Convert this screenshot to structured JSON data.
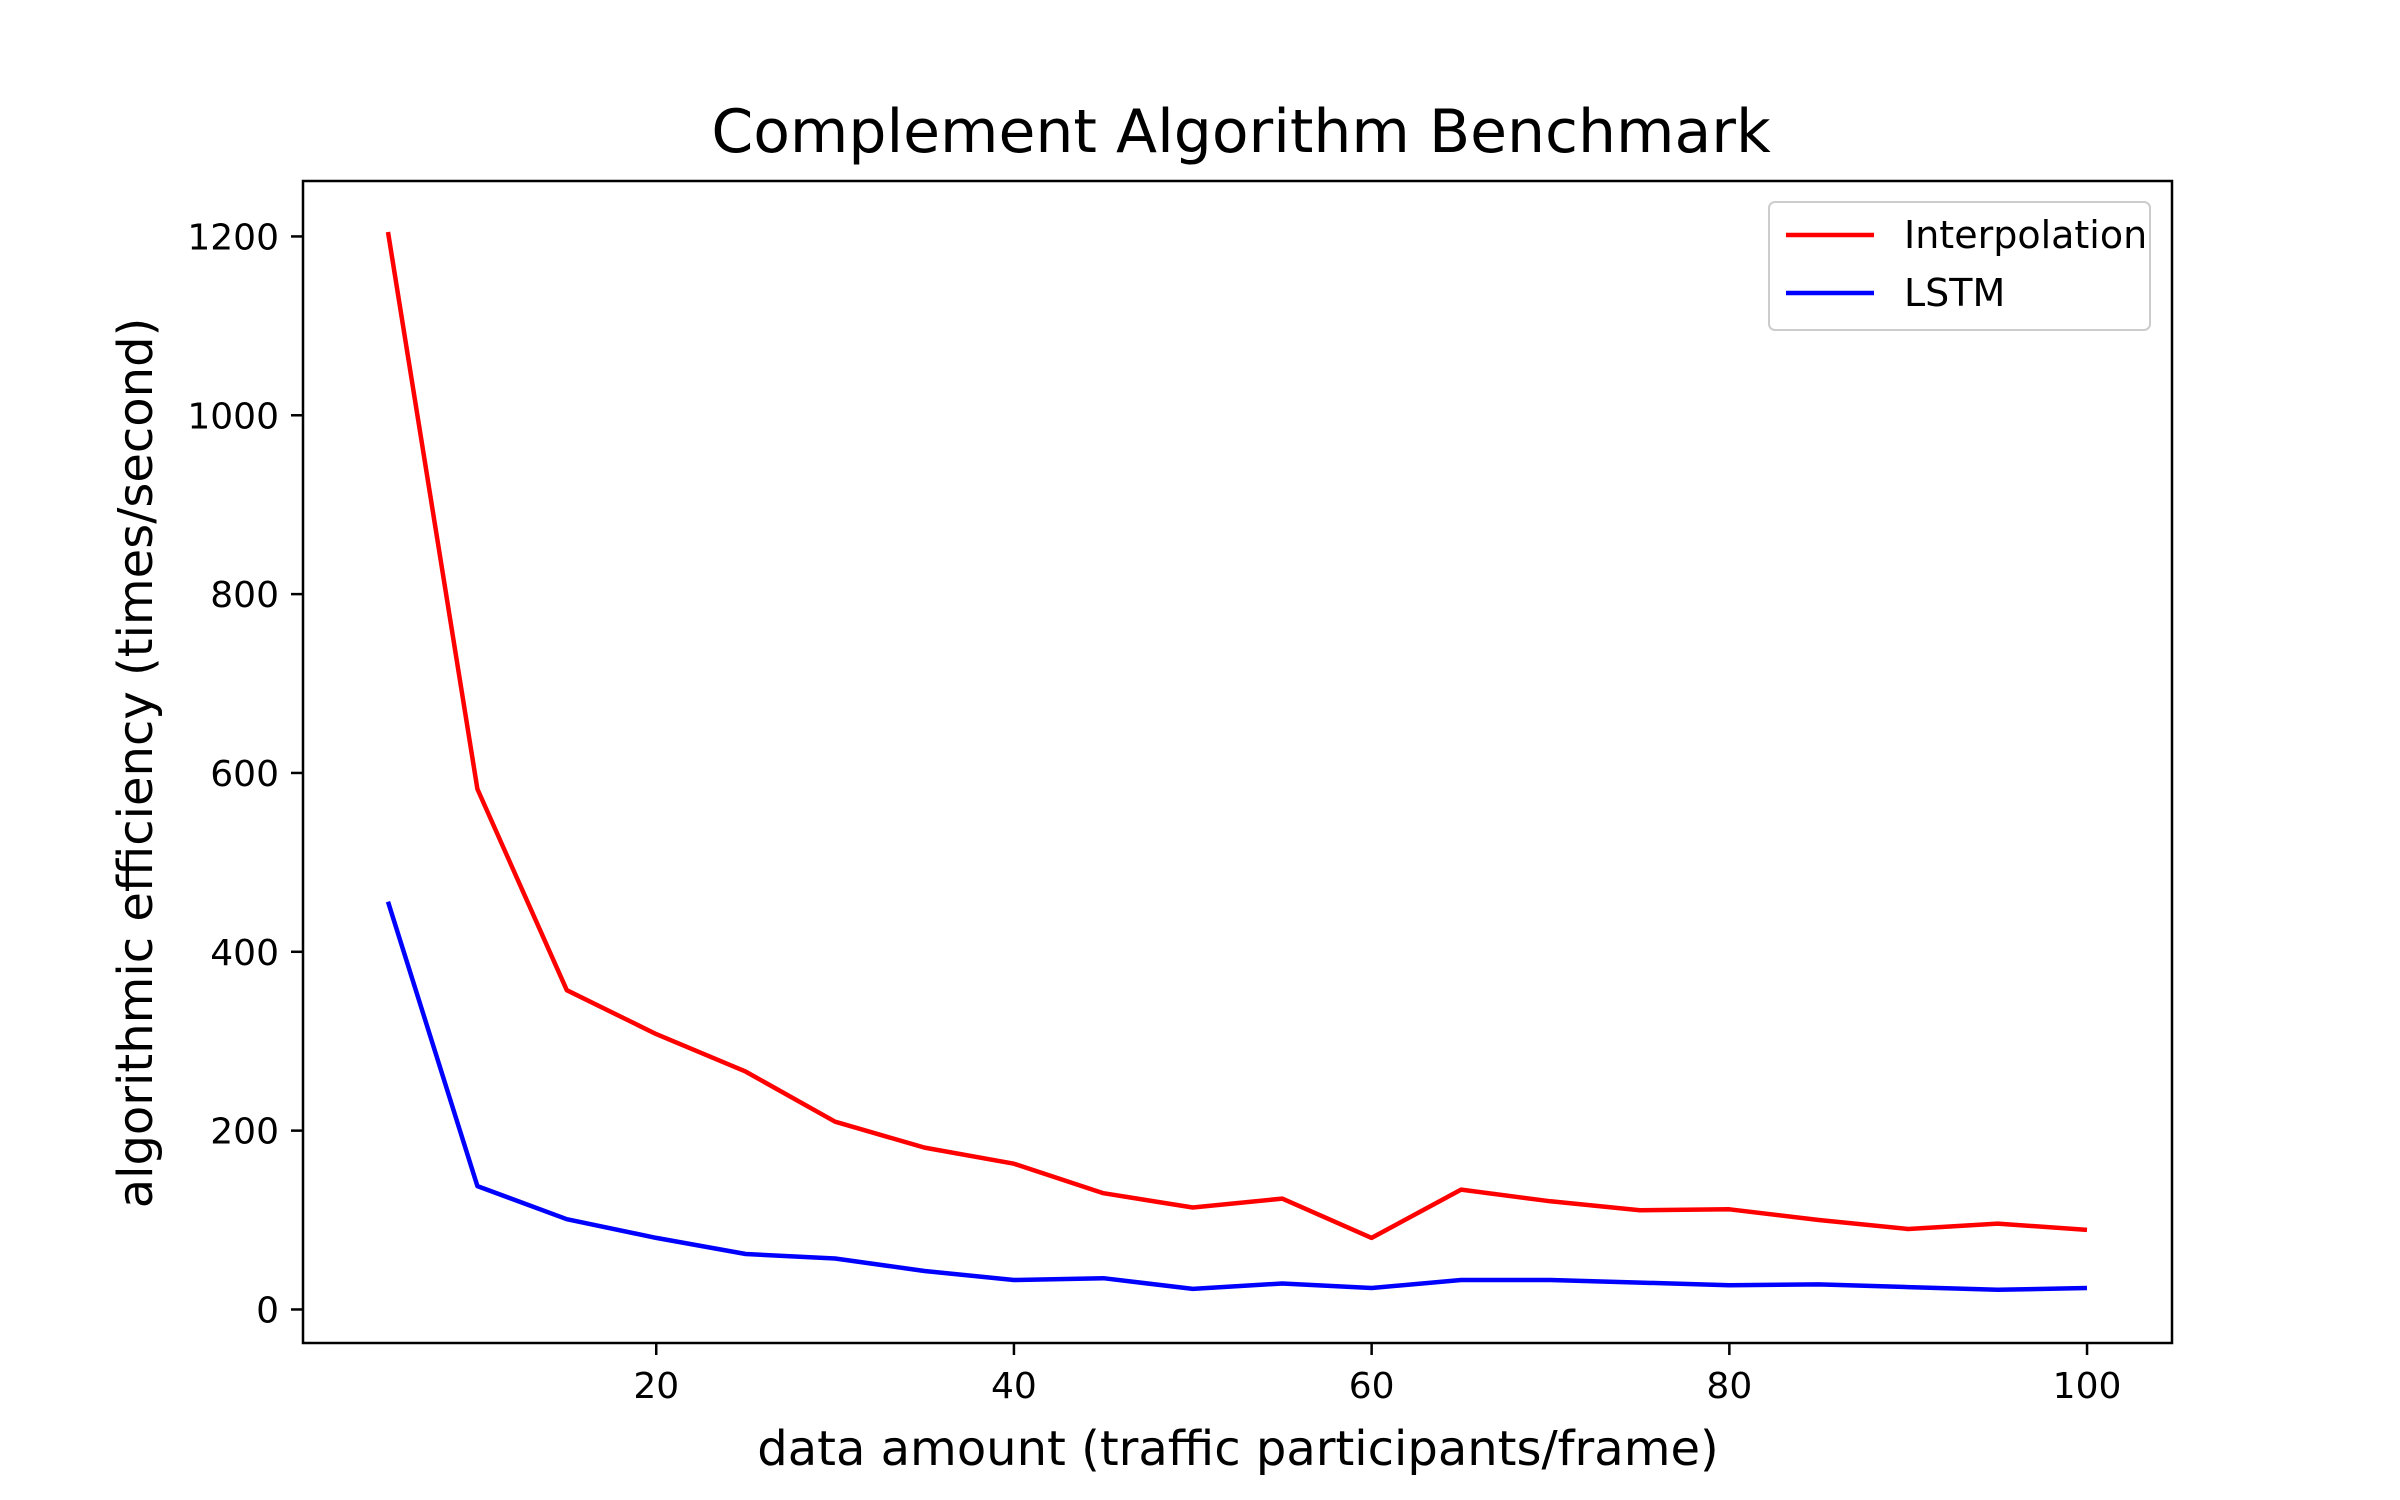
{
  "chart_data": {
    "type": "line",
    "title": "Complement Algorithm Benchmark",
    "xlabel": "data amount (traffic participants/frame)",
    "ylabel": "algorithmic efficiency (times/second)",
    "x": [
      5,
      10,
      15,
      20,
      25,
      30,
      35,
      40,
      45,
      50,
      55,
      60,
      65,
      70,
      75,
      80,
      85,
      90,
      95,
      100
    ],
    "series": [
      {
        "name": "Interpolation",
        "color": "#ff0000",
        "values": [
          1205,
          582,
          357,
          308,
          266,
          210,
          181,
          163,
          130,
          114,
          124,
          80,
          134,
          121,
          111,
          112,
          100,
          90,
          96,
          89
        ]
      },
      {
        "name": "LSTM",
        "color": "#0000ff",
        "values": [
          456,
          138,
          101,
          80,
          62,
          57,
          43,
          33,
          35,
          23,
          29,
          24,
          33,
          33,
          30,
          27,
          28,
          25,
          22,
          24
        ]
      }
    ],
    "xlim": [
      0.25,
      104.75
    ],
    "ylim": [
      -37.5,
      1262
    ],
    "xticks": [
      20,
      40,
      60,
      80,
      100
    ],
    "yticks": [
      0,
      200,
      400,
      600,
      800,
      1000,
      1200
    ],
    "grid": false,
    "legend_position": "top-right"
  }
}
